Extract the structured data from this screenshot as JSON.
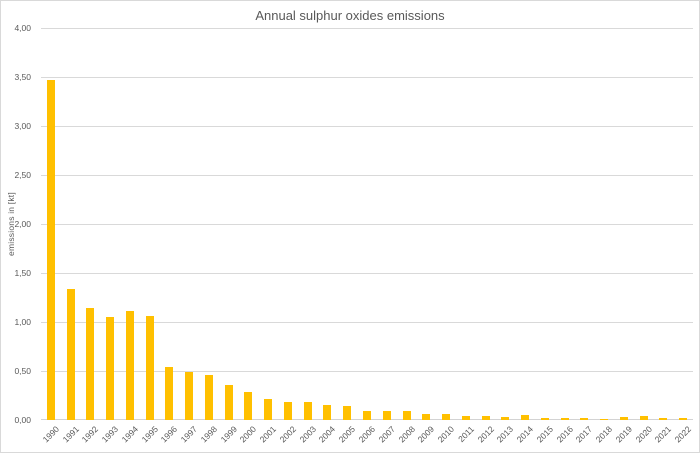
{
  "window": {
    "background": "#ffffff",
    "border_color": "#d9d9d9"
  },
  "chart_data": {
    "type": "bar",
    "title": "Annual sulphur oxides emissions",
    "xlabel": "",
    "ylabel": "emissions in [kt]",
    "ylim": [
      0,
      4
    ],
    "yticks": [
      0,
      0.5,
      1,
      1.5,
      2,
      2.5,
      3,
      3.5,
      4
    ],
    "ytick_labels": [
      "0,00",
      "0,50",
      "1,00",
      "1,50",
      "2,00",
      "2,50",
      "3,00",
      "3,50",
      "4,00"
    ],
    "grid": true,
    "legend": false,
    "bar_color": "#FFC000",
    "gridline_color": "#D9D9D9",
    "axis_line_color": "#D3D3D3",
    "text_color": "#595959",
    "categories": [
      "1990",
      "1991",
      "1992",
      "1993",
      "1994",
      "1995",
      "1996",
      "1997",
      "1998",
      "1999",
      "2000",
      "2001",
      "2002",
      "2003",
      "2004",
      "2005",
      "2006",
      "2007",
      "2008",
      "2009",
      "2010",
      "2011",
      "2012",
      "2013",
      "2014",
      "2015",
      "2016",
      "2017",
      "2018",
      "2019",
      "2020",
      "2021",
      "2022"
    ],
    "values": [
      3.47,
      1.34,
      1.14,
      1.05,
      1.11,
      1.06,
      0.54,
      0.49,
      0.46,
      0.36,
      0.29,
      0.215,
      0.185,
      0.18,
      0.155,
      0.14,
      0.09,
      0.088,
      0.09,
      0.065,
      0.058,
      0.044,
      0.037,
      0.034,
      0.054,
      0.017,
      0.024,
      0.017,
      0.01,
      0.027,
      0.041,
      0.02,
      0.025
    ]
  }
}
